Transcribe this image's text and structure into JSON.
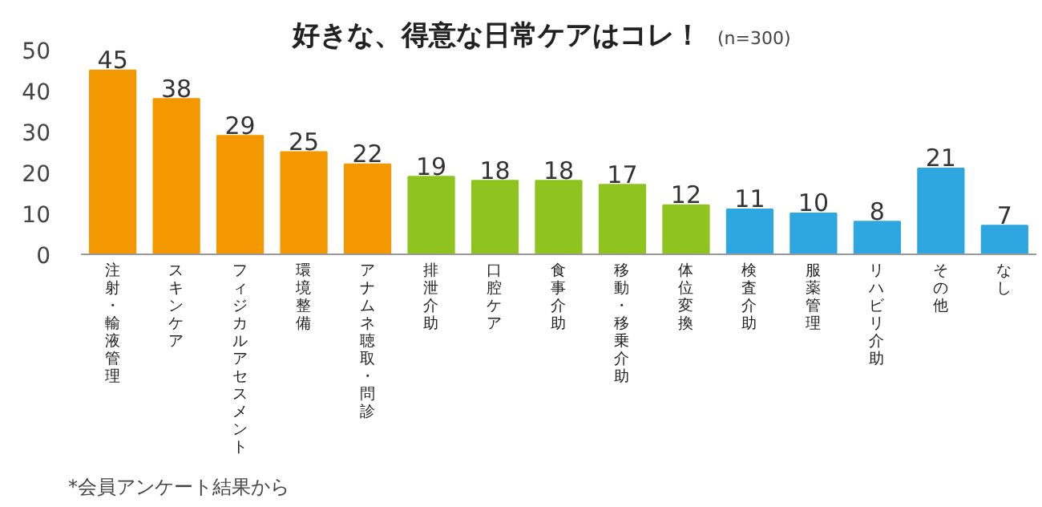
{
  "chart_data": {
    "type": "bar",
    "title": "好きな、得意な日常ケアはコレ！",
    "subtitle": "(n=300)",
    "categories": [
      "注射・輸液管理",
      "スキンケア",
      "フィジカルアセスメント",
      "環境整備",
      "アナムネ聴取・問診",
      "排泄介助",
      "口腔ケア",
      "食事介助",
      "移動・移乗介助",
      "体位変換",
      "検査介助",
      "服薬管理",
      "リハビリ介助",
      "その他",
      "なし"
    ],
    "values": [
      45,
      38,
      29,
      25,
      22,
      19,
      18,
      18,
      17,
      12,
      11,
      10,
      8,
      21,
      7
    ],
    "colors": [
      "#f39800",
      "#f39800",
      "#f39800",
      "#f39800",
      "#f39800",
      "#8fc31f",
      "#8fc31f",
      "#8fc31f",
      "#8fc31f",
      "#8fc31f",
      "#2ea7e0",
      "#2ea7e0",
      "#2ea7e0",
      "#2ea7e0",
      "#2ea7e0"
    ],
    "ylim": [
      0,
      50
    ],
    "yticks": [
      0,
      10,
      20,
      30,
      40,
      50
    ],
    "grid": false,
    "data_labels": true,
    "annotations": [
      "*会員アンケート結果から"
    ]
  }
}
